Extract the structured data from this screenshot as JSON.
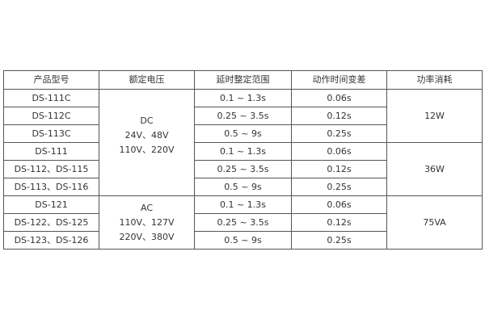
{
  "headers": [
    "产品型号",
    "额定电压",
    "延时整定范围",
    "动作时间变差",
    "功率消耗"
  ],
  "rows": [
    {
      "model": "DS-111C",
      "range": "0.1 ~ 1.3s",
      "variation": "0.06s"
    },
    {
      "model": "DS-112C",
      "range": "0.25 ~ 3.5s",
      "variation": "0.12s"
    },
    {
      "model": "DS-113C",
      "range": "0.5 ~ 9s",
      "variation": "0.25s"
    },
    {
      "model": "DS-111",
      "range": "0.1 ~ 1.3s",
      "variation": "0.06s"
    },
    {
      "model": "DS-112、DS-115",
      "range": "0.25 ~ 3.5s",
      "variation": "0.12s"
    },
    {
      "model": "DS-113、DS-116",
      "range": "0.5 ~ 9s",
      "variation": "0.25s"
    },
    {
      "model": "DS-121",
      "range": "0.1 ~ 1.3s",
      "variation": "0.06s"
    },
    {
      "model": "DS-122、DS-125",
      "range": "0.25 ~ 3.5s",
      "variation": "0.12s"
    },
    {
      "model": "DS-123、DS-126",
      "range": "0.5 ~ 9s",
      "variation": "0.25s"
    }
  ],
  "voltage": {
    "dc": [
      "DC",
      "24V、48V",
      "110V、220V"
    ],
    "ac": [
      "AC",
      "110V、127V",
      "220V、380V"
    ]
  },
  "power": [
    "12W",
    "36W",
    "75VA"
  ]
}
